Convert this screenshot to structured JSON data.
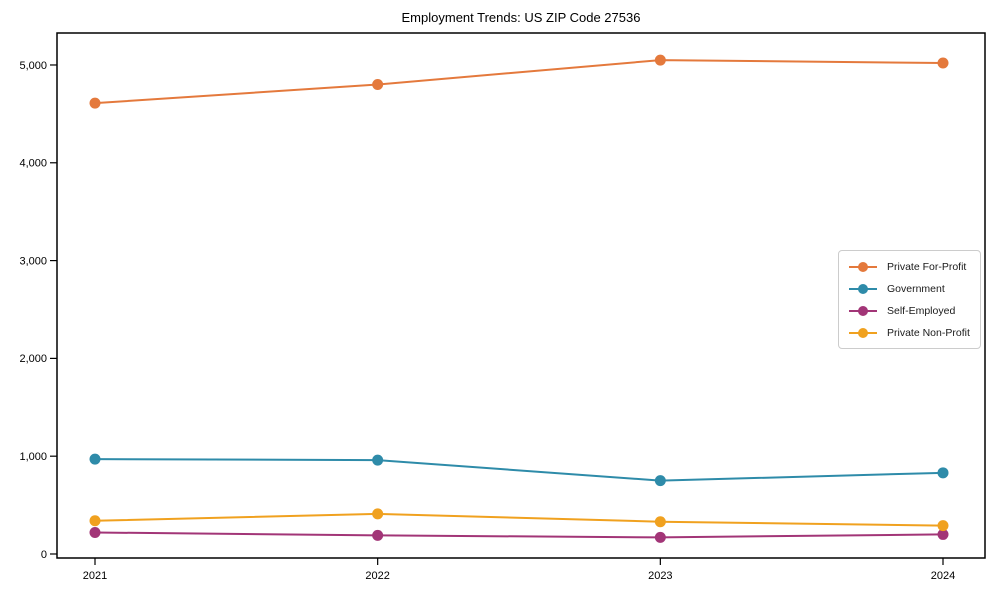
{
  "figure": {
    "title": "Employment Trends: US ZIP Code 27536"
  },
  "chart_data": {
    "type": "line",
    "title": "Employment Trends: US ZIP Code 27536",
    "categories": [
      "2021",
      "2022",
      "2023",
      "2024"
    ],
    "series": [
      {
        "name": "Private For-Profit",
        "color": "#e4793c",
        "values": [
          4610,
          4800,
          5050,
          5020
        ]
      },
      {
        "name": "Government",
        "color": "#2e8ba9",
        "values": [
          970,
          960,
          750,
          830
        ]
      },
      {
        "name": "Self-Employed",
        "color": "#a23577",
        "values": [
          220,
          190,
          170,
          200
        ]
      },
      {
        "name": "Private Non-Profit",
        "color": "#f0a11f",
        "values": [
          340,
          410,
          330,
          290
        ]
      }
    ],
    "xlabel": "",
    "ylabel": "",
    "ylim": [
      -41,
      5327
    ],
    "yticks": [
      0,
      1000,
      2000,
      3000,
      4000,
      5000
    ],
    "ytick_labels": [
      "0",
      "1,000",
      "2,000",
      "3,000",
      "4,000",
      "5,000"
    ],
    "grid": false,
    "legend_position": "center-right",
    "marker": "circle"
  }
}
